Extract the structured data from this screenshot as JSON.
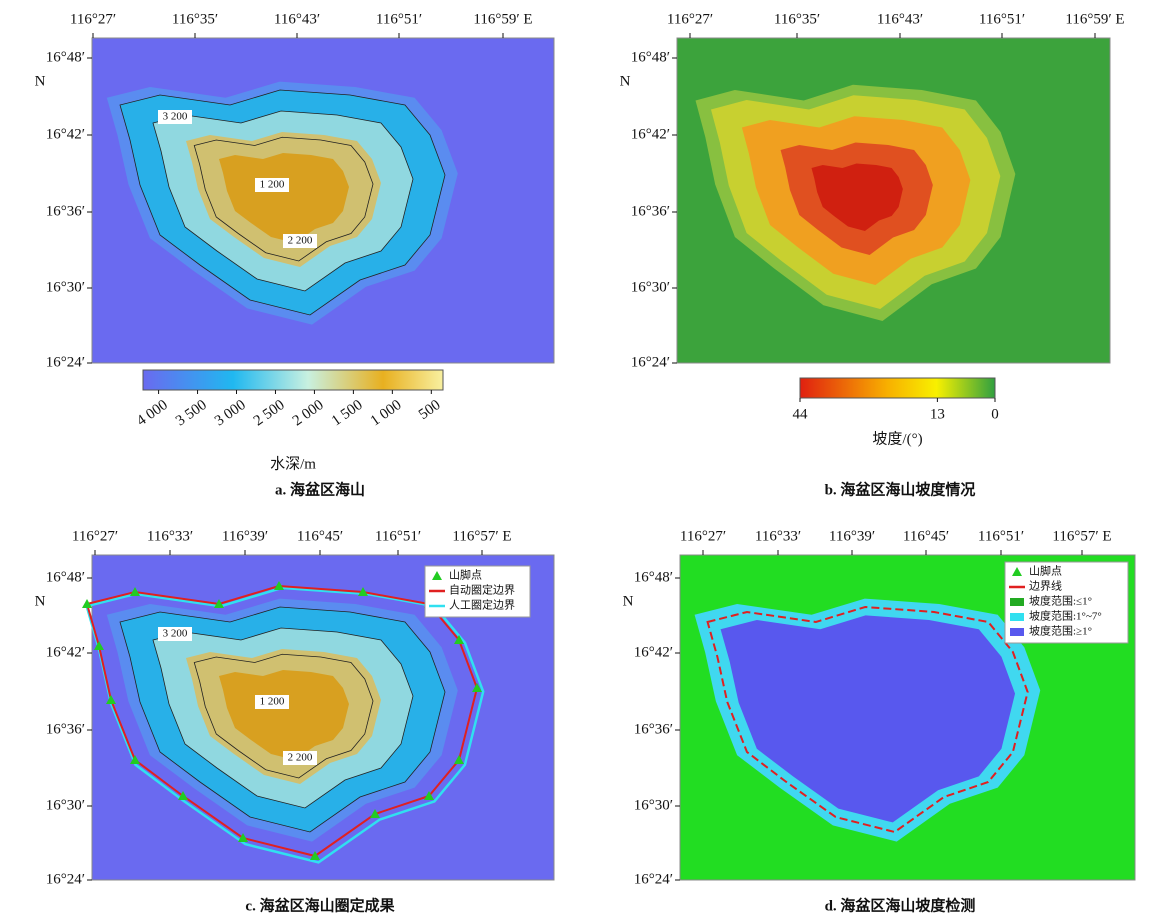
{
  "panels": [
    {
      "caption": "a. 海盆区海山",
      "x_ticks": [
        "116°27′",
        "116°35′",
        "116°43′",
        "116°51′",
        "116°59′ E"
      ],
      "y_ticks": [
        "16°48′",
        "16°42′",
        "16°36′",
        "16°30′",
        "16°24′"
      ],
      "north": "N",
      "contour_labels": [
        "3 200",
        "1 200",
        "2 200"
      ],
      "colorbar": {
        "title": "水深/m",
        "lim": [
          4200,
          350
        ],
        "ticks": [
          {
            "value": 4000,
            "label": "4 000"
          },
          {
            "value": 3500,
            "label": "3 500"
          },
          {
            "value": 3000,
            "label": "3 000"
          },
          {
            "value": 2500,
            "label": "2 500"
          },
          {
            "value": 2000,
            "label": "2 000"
          },
          {
            "value": 1500,
            "label": "1 500"
          },
          {
            "value": 1000,
            "label": "1 000"
          },
          500
        ]
      }
    },
    {
      "caption": "b. 海盆区海山坡度情况",
      "x_ticks": [
        "116°27′",
        "116°35′",
        "116°43′",
        "116°51′",
        "116°59′ E"
      ],
      "y_ticks": [
        "16°48′",
        "16°42′",
        "16°36′",
        "16°30′",
        "16°24′"
      ],
      "north": "N",
      "colorbar": {
        "title": "坡度/(°)",
        "lim": [
          44,
          0
        ],
        "ticks": [
          44,
          13,
          0
        ]
      }
    },
    {
      "caption": "c. 海盆区海山圈定成果",
      "x_ticks": [
        "116°27′",
        "116°33′",
        "116°39′",
        "116°45′",
        "116°51′",
        "116°57′ E"
      ],
      "y_ticks": [
        "16°48′",
        "16°42′",
        "16°36′",
        "16°30′",
        "16°24′"
      ],
      "north": "N",
      "contour_labels": [
        "3 200",
        "1 200",
        "2 200"
      ],
      "legend": [
        "山脚点",
        "自动圈定边界",
        "人工圈定边界"
      ]
    },
    {
      "caption": "d. 海盆区海山坡度检测",
      "x_ticks": [
        "116°27′",
        "116°33′",
        "116°39′",
        "116°45′",
        "116°51′",
        "116°57′ E"
      ],
      "y_ticks": [
        "16°48′",
        "16°42′",
        "16°36′",
        "16°30′",
        "16°24′"
      ],
      "north": "N",
      "legend": [
        "山脚点",
        "边界线",
        "坡度范围:≤1°",
        "坡度范围:1°~7°",
        "坡度范围:≥1°"
      ]
    }
  ]
}
